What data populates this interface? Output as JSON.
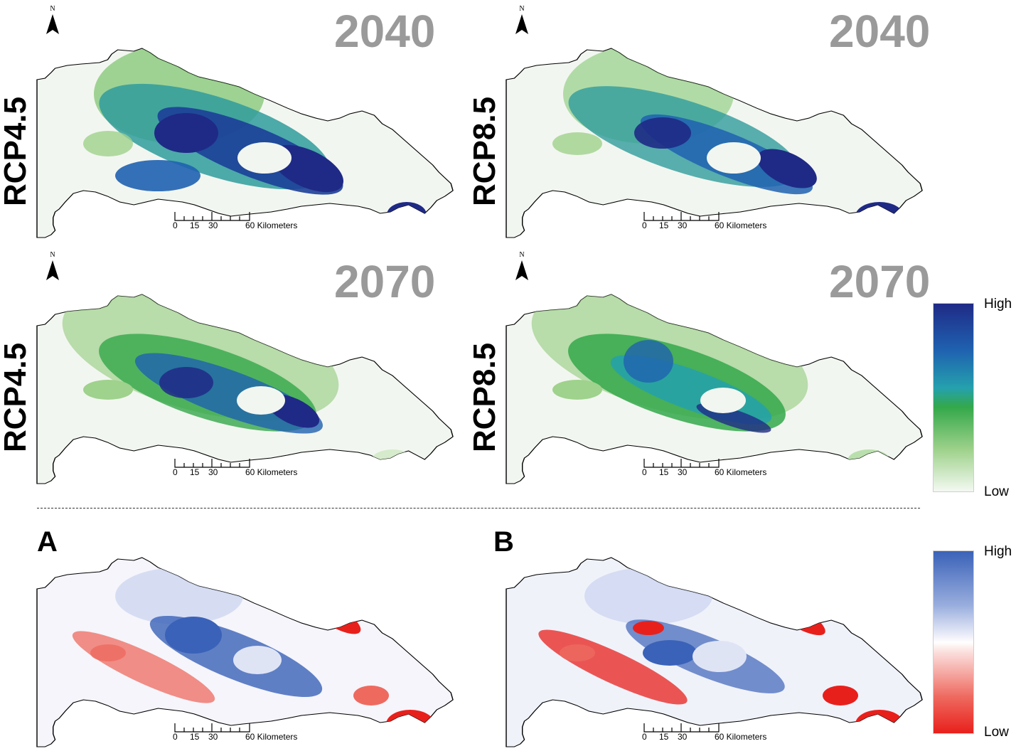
{
  "top_panels": [
    {
      "id": "rcp45-2040",
      "scenario": "RCP4.5",
      "year": "2040"
    },
    {
      "id": "rcp85-2040",
      "scenario": "RCP8.5",
      "year": "2040"
    },
    {
      "id": "rcp45-2070",
      "scenario": "RCP4.5",
      "year": "2070"
    },
    {
      "id": "rcp85-2070",
      "scenario": "RCP8.5",
      "year": "2070"
    }
  ],
  "bottom_panels": [
    {
      "id": "change-a",
      "letter": "A"
    },
    {
      "id": "change-b",
      "letter": "B"
    }
  ],
  "north_arrow_label": "N",
  "scale_bar": {
    "ticks": [
      "0",
      "15",
      "30",
      "60 Kilometers"
    ]
  },
  "legend_suitability": {
    "high": "High",
    "low": "Low",
    "colors": [
      "#1f2a86",
      "#1f62b0",
      "#25a1ad",
      "#33a84a",
      "#9fd28c",
      "#f4f9f2"
    ]
  },
  "legend_change": {
    "high": "High",
    "low": "Low",
    "colors": [
      "#3a62b8",
      "#9aaede",
      "#f5f5fb",
      "#fbe1df",
      "#ee6a5f",
      "#e8201c"
    ]
  }
}
